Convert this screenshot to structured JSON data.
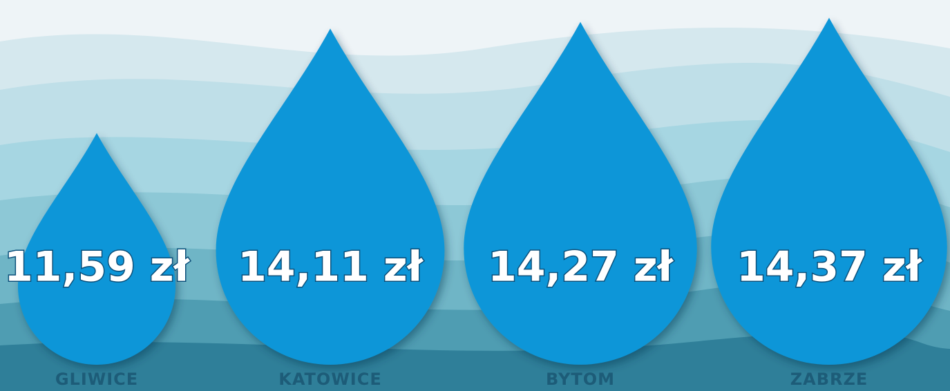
{
  "chart_data": {
    "type": "drop",
    "categories": [
      "GLIWICE",
      "KATOWICE",
      "BYTOM",
      "ZABRZE"
    ],
    "values": [
      11.59,
      14.11,
      14.27,
      14.37
    ],
    "value_labels": [
      "11,59 zł",
      "14,11 zł",
      "14,27 zł",
      "14,37 zł"
    ],
    "color": "#0c96d8"
  }
}
